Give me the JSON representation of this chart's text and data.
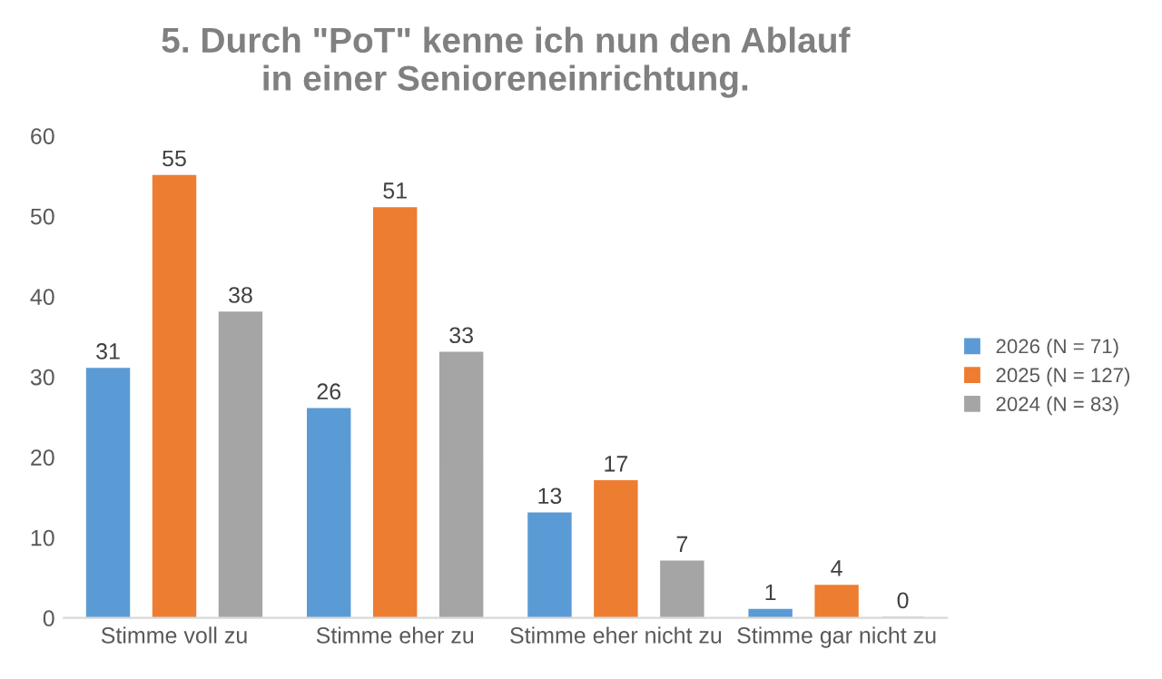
{
  "chart_data": {
    "type": "bar",
    "title": "5. Durch \"PoT\" kenne ich nun den Ablauf\nin einer Senioreneinrichtung.",
    "categories": [
      "Stimme voll zu",
      "Stimme eher zu",
      "Stimme eher nicht zu",
      "Stimme gar nicht zu"
    ],
    "series": [
      {
        "name": "2026 (N = 71)",
        "color": "#5b9bd5",
        "values": [
          31,
          26,
          13,
          1
        ]
      },
      {
        "name": "2025 (N = 127)",
        "color": "#ed7d31",
        "values": [
          55,
          51,
          17,
          4
        ]
      },
      {
        "name": "2024 (N = 83)",
        "color": "#a5a5a5",
        "values": [
          38,
          33,
          7,
          0
        ]
      }
    ],
    "ylim": [
      0,
      60
    ],
    "yticks": [
      0,
      10,
      20,
      30,
      40,
      50,
      60
    ],
    "grid": false,
    "legend": "right",
    "data_labels": true
  }
}
